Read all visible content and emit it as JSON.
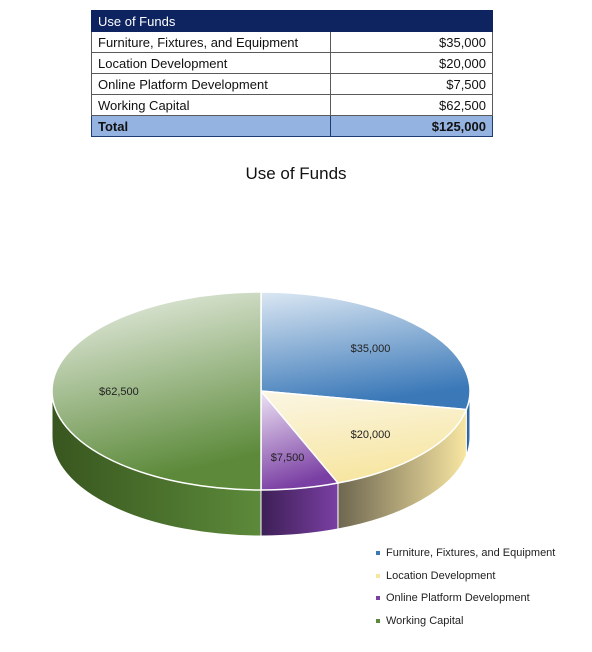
{
  "table": {
    "header": "Use of Funds",
    "rows": [
      {
        "label": "Furniture, Fixtures, and Equipment",
        "amount": "$35,000"
      },
      {
        "label": "Location Development",
        "amount": "$20,000"
      },
      {
        "label": "Online Platform Development",
        "amount": "$7,500"
      },
      {
        "label": "Working Capital",
        "amount": "$62,500"
      }
    ],
    "total": {
      "label": "Total",
      "amount": "$125,000"
    }
  },
  "chart_data": {
    "type": "pie",
    "title": "Use of Funds",
    "three_d": true,
    "legend_position": "bottom-right",
    "categories": [
      "Furniture, Fixtures, and Equipment",
      "Location Development",
      "Online Platform Development",
      "Working Capital"
    ],
    "values": [
      35000,
      20000,
      7500,
      62500
    ],
    "data_labels": [
      "$35,000",
      "$20,000",
      "$7,500",
      "$62,500"
    ],
    "colors": [
      "#3a78b8",
      "#f7e6a2",
      "#7a3fa3",
      "#5c8a3a"
    ]
  }
}
